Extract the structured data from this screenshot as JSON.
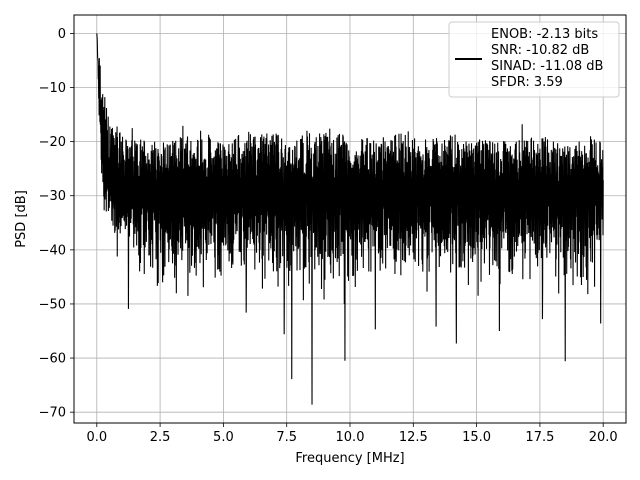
{
  "chart_data": {
    "type": "line",
    "title": "",
    "xlabel": "Frequency [MHz]",
    "ylabel": "PSD [dB]",
    "xlim": [
      -0.9,
      20.9
    ],
    "ylim": [
      -72,
      3.4
    ],
    "x_ticks": [
      0.0,
      2.5,
      5.0,
      7.5,
      10.0,
      12.5,
      15.0,
      17.5,
      20.0
    ],
    "x_tick_labels": [
      "0.0",
      "2.5",
      "5.0",
      "7.5",
      "10.0",
      "12.5",
      "15.0",
      "17.5",
      "20.0"
    ],
    "y_ticks": [
      0,
      -10,
      -20,
      -30,
      -40,
      -50,
      -60,
      -70
    ],
    "y_tick_labels": [
      "0",
      "−10",
      "−20",
      "−30",
      "−40",
      "−50",
      "−60",
      "−70"
    ],
    "grid": true,
    "legend_position": "top-right",
    "line_color": "#000000",
    "legend": {
      "lines": [
        "ENOB: -2.13 bits",
        "SNR: -10.82 dB",
        "SINAD: -11.08 dB",
        "SFDR: 3.59"
      ]
    },
    "series": [
      {
        "x": [
          0.0,
          0.05,
          0.1,
          0.15,
          0.2,
          0.3,
          0.4,
          0.5,
          1.0,
          1.5,
          2.0,
          3.0,
          4.0,
          5.0,
          6.0,
          7.0,
          7.5,
          8.5,
          9.5,
          10.0,
          11.0,
          12.0,
          13.0,
          14.0,
          14.5,
          15.0,
          16.0,
          17.0,
          17.5,
          18.0,
          18.5,
          19.0,
          19.5,
          20.0
        ],
        "y": [
          0,
          -6,
          -13,
          -17,
          -20,
          -25,
          -26,
          -28,
          -30,
          -31,
          -31,
          -31,
          -31,
          -32,
          -31,
          -31,
          -31,
          -31,
          -31,
          -31,
          -31,
          -31,
          -31,
          -31,
          -31,
          -31,
          -31,
          -31,
          -31,
          -31,
          -31,
          -31,
          -31,
          -31
        ],
        "y_upper": [
          0,
          -2,
          -5,
          -9,
          -12,
          -14,
          -16,
          -19,
          -21,
          -22,
          -22,
          -22,
          -21,
          -22,
          -21,
          -21,
          -22,
          -21,
          -21,
          -21,
          -22,
          -21,
          -22,
          -21,
          -22,
          -22,
          -22,
          -22,
          -21,
          -22,
          -23,
          -22,
          -22,
          -22
        ],
        "y_lower": [
          0,
          -12,
          -17,
          -26,
          -33,
          -36,
          -38,
          -40,
          -44,
          -48,
          -48,
          -49,
          -50,
          -48,
          -51,
          -49,
          -53,
          -50,
          -52,
          -49,
          -48,
          -48,
          -50,
          -51,
          -52,
          -50,
          -49,
          -50,
          -50,
          -49,
          -52,
          -51,
          -50,
          -44
        ],
        "deep_dips": [
          {
            "x": 1.25,
            "y": -50.9
          },
          {
            "x": 2.6,
            "y": -46.0
          },
          {
            "x": 3.6,
            "y": -48.5
          },
          {
            "x": 5.9,
            "y": -51.6
          },
          {
            "x": 7.4,
            "y": -55.6
          },
          {
            "x": 7.7,
            "y": -63.9
          },
          {
            "x": 8.5,
            "y": -68.6
          },
          {
            "x": 9.8,
            "y": -60.5
          },
          {
            "x": 11.0,
            "y": -54.7
          },
          {
            "x": 13.4,
            "y": -54.2
          },
          {
            "x": 14.2,
            "y": -57.3
          },
          {
            "x": 15.9,
            "y": -55.0
          },
          {
            "x": 17.6,
            "y": -52.8
          },
          {
            "x": 18.5,
            "y": -60.6
          },
          {
            "x": 19.9,
            "y": -53.6
          }
        ],
        "upper_spikes": [
          {
            "x": 0.3,
            "y": -15.5
          },
          {
            "x": 0.8,
            "y": -17.2
          },
          {
            "x": 1.4,
            "y": -17.5
          },
          {
            "x": 3.4,
            "y": -17.1
          },
          {
            "x": 4.1,
            "y": -18.0
          },
          {
            "x": 6.0,
            "y": -18.2
          },
          {
            "x": 8.3,
            "y": -18.0
          },
          {
            "x": 9.2,
            "y": -17.6
          },
          {
            "x": 12.3,
            "y": -18.1
          },
          {
            "x": 16.8,
            "y": -16.8
          },
          {
            "x": 19.5,
            "y": -19.0
          }
        ]
      }
    ]
  }
}
